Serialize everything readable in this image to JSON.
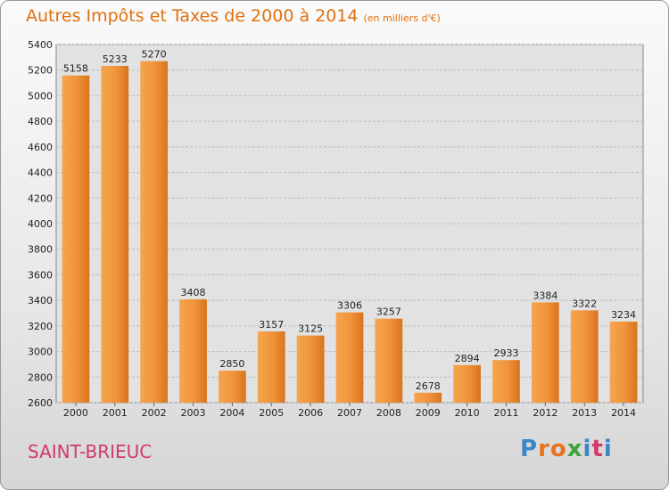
{
  "chart_data": {
    "type": "bar",
    "title": "Autres Impôts et Taxes de 2000 à 2014",
    "subtitle": "(en milliers d'€)",
    "categories": [
      "2000",
      "2001",
      "2002",
      "2003",
      "2004",
      "2005",
      "2006",
      "2007",
      "2008",
      "2009",
      "2010",
      "2011",
      "2012",
      "2013",
      "2014"
    ],
    "values": [
      5158,
      5233,
      5270,
      3408,
      2850,
      3157,
      3125,
      3306,
      3257,
      2678,
      2894,
      2933,
      3384,
      3322,
      3234
    ],
    "ylim": [
      2600,
      5400
    ],
    "yticks": [
      2600,
      2800,
      3000,
      3200,
      3400,
      3600,
      3800,
      4000,
      4200,
      4400,
      4600,
      4800,
      5000,
      5200,
      5400
    ],
    "grid": true,
    "bar_color": "#f0933a"
  },
  "footer": {
    "city": "SAINT-BRIEUC",
    "brand_letters": [
      "P",
      "r",
      "o",
      "x",
      "i",
      "t",
      "i"
    ]
  }
}
